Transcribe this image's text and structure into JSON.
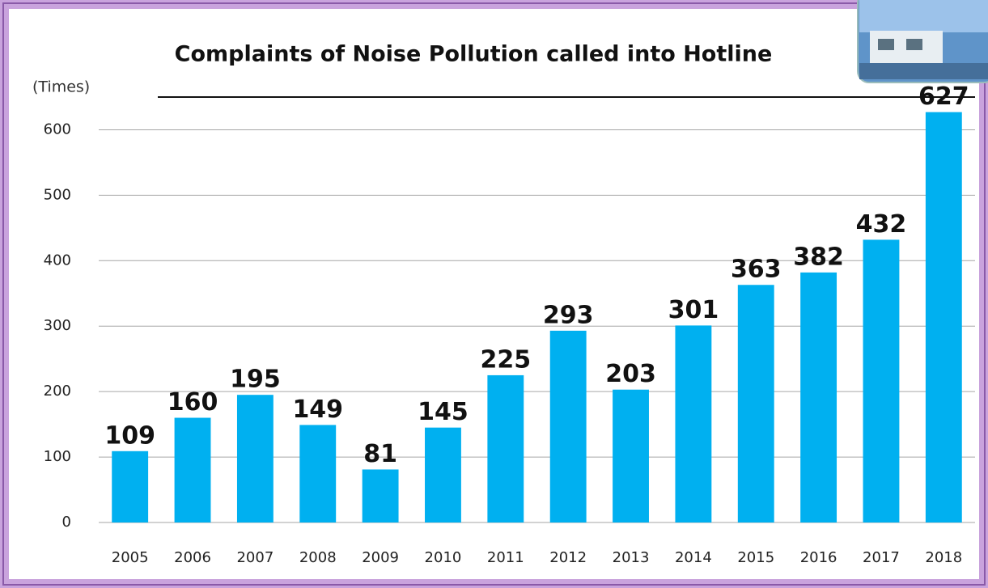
{
  "chart_data": {
    "type": "bar",
    "title": "Complaints of Noise Pollution called into Hotline",
    "y_label": "(Times)",
    "categories": [
      "2005",
      "2006",
      "2007",
      "2008",
      "2009",
      "2010",
      "2011",
      "2012",
      "2013",
      "2014",
      "2015",
      "2016",
      "2017",
      "2018"
    ],
    "values": [
      109,
      160,
      195,
      149,
      81,
      145,
      225,
      293,
      203,
      301,
      363,
      382,
      432,
      627
    ],
    "color": "#00b0f0",
    "ylim": [
      0,
      650
    ],
    "yticks": [
      0,
      100,
      200,
      300,
      400,
      500,
      600
    ],
    "grid": true
  }
}
